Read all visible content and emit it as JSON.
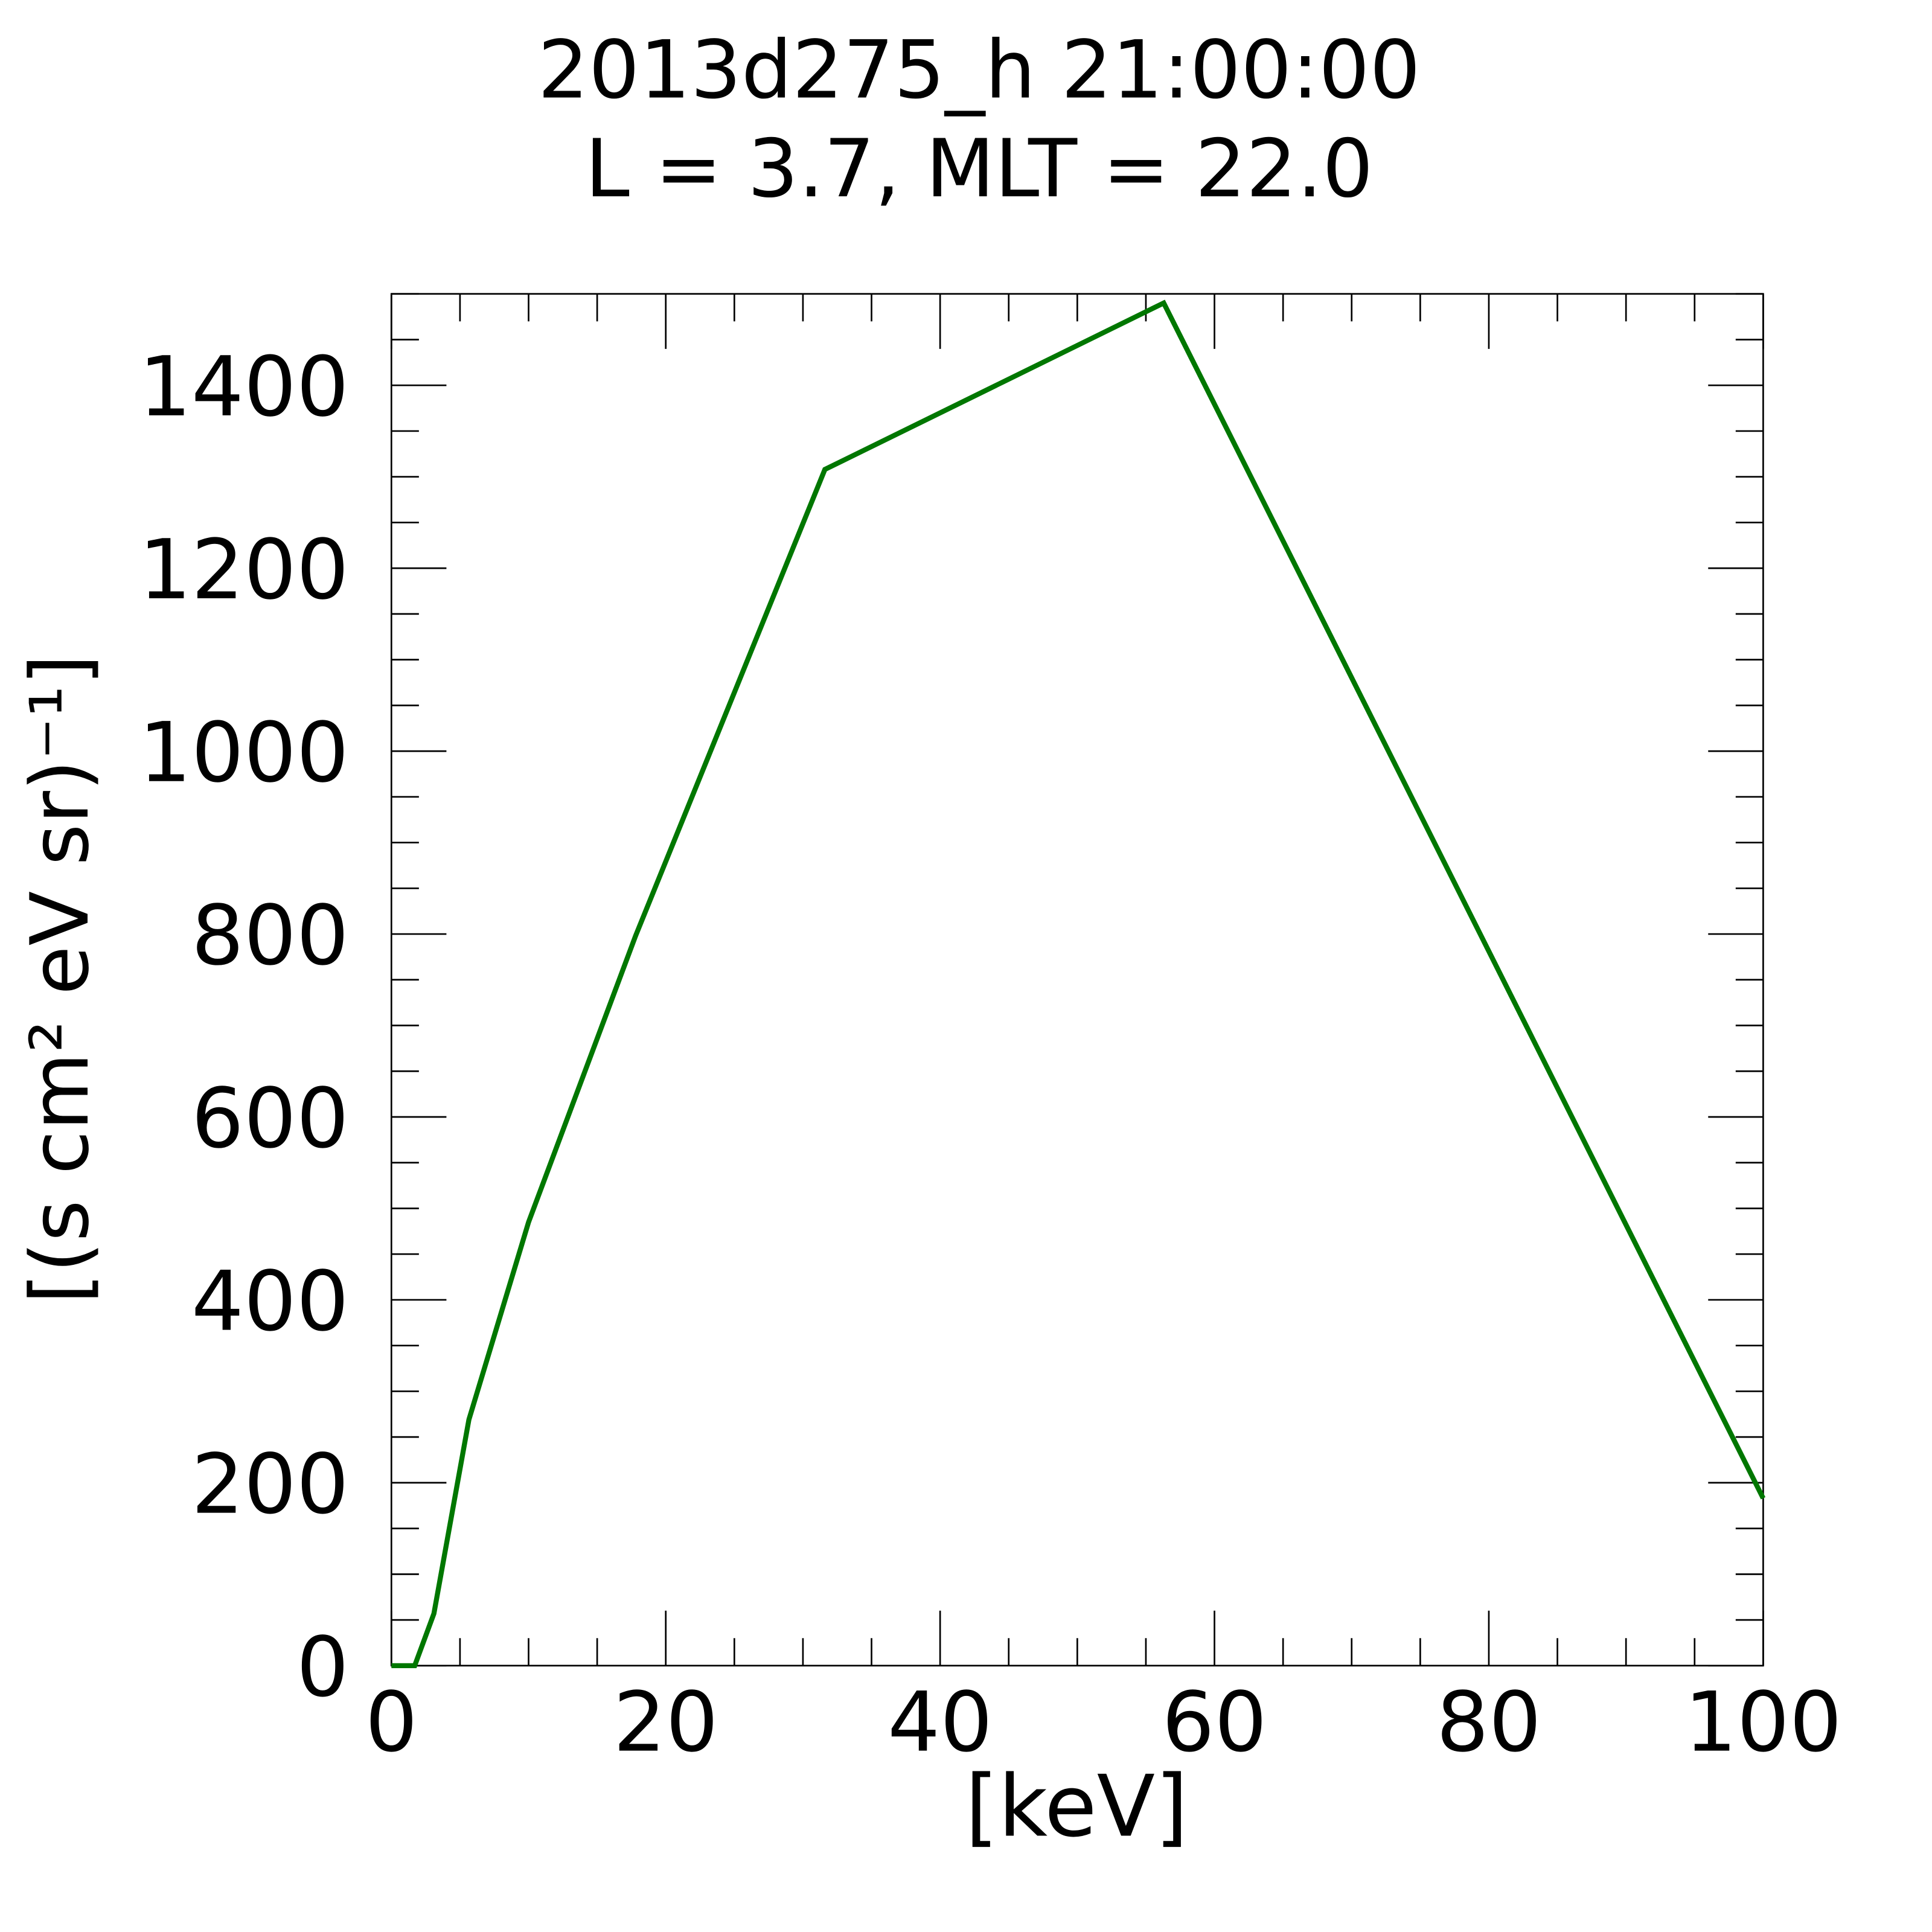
{
  "chart_data": {
    "type": "line",
    "title": "2013d275_h  21:00:00",
    "subtitle": "L = 3.7, MLT = 22.0",
    "x_label": "[keV]",
    "y_label": "[(s cm² eV sr)⁻¹]",
    "x": [
      0,
      1.7,
      3.1,
      5.65,
      10.0,
      17.8,
      31.6,
      56.3,
      100
    ],
    "series": [
      {
        "color": "#007700",
        "values": [
          0,
          0,
          57,
          269,
          485,
          798,
          1308,
          1490,
          183
        ]
      }
    ],
    "xlim": [
      0,
      100
    ],
    "xticks": [
      0,
      20,
      40,
      60,
      80,
      100
    ],
    "ylim": [
      0,
      1500
    ],
    "yticks": [
      0,
      200,
      400,
      600,
      800,
      1000,
      1200,
      1400
    ],
    "grid": false
  }
}
